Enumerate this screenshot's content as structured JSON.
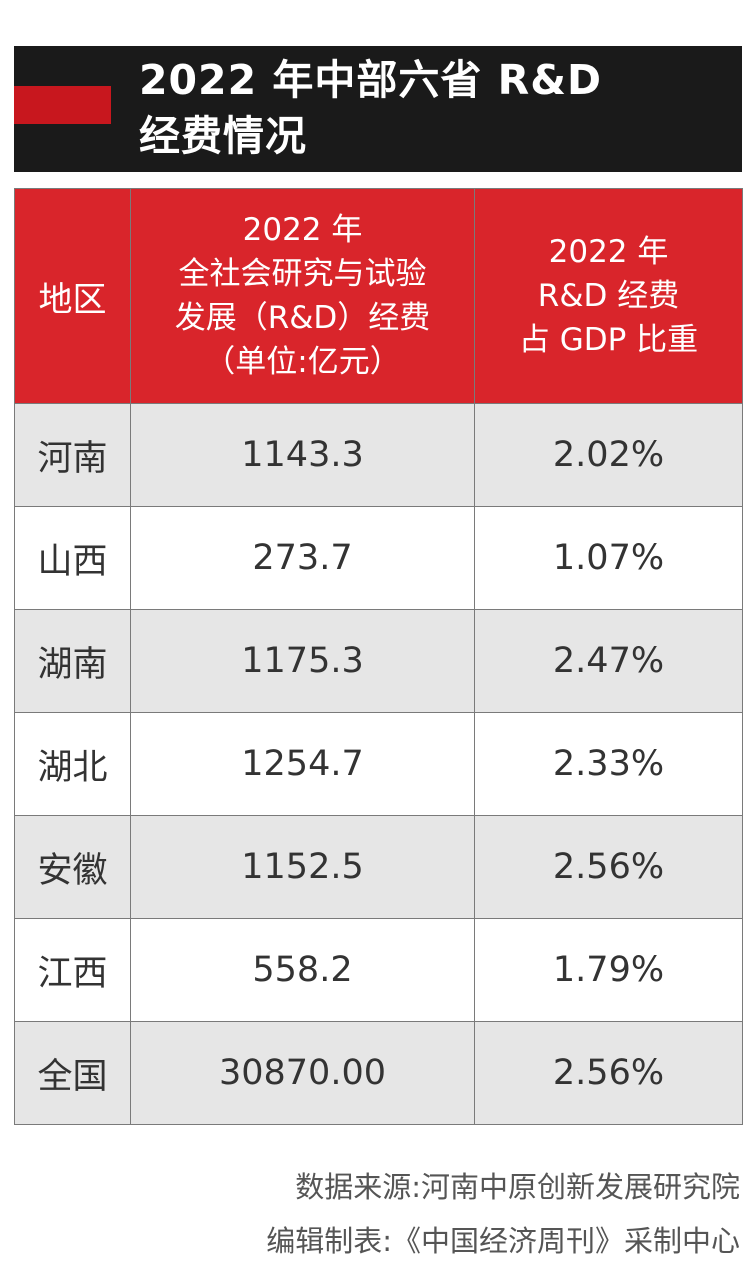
{
  "title": {
    "line1": "2022 年中部六省 R&D",
    "line2": "经费情况"
  },
  "colors": {
    "title_bg": "#1a1a1a",
    "accent_red": "#c8171e",
    "header_red": "#d9252b",
    "row_shade": "#e6e6e6"
  },
  "chart_data": {
    "type": "table",
    "title": "2022 年中部六省 R&D 经费情况",
    "columns": [
      {
        "lines": [
          "地区"
        ]
      },
      {
        "lines": [
          "2022 年",
          "全社会研究与试验",
          "发展（R&D）经费",
          "（单位:亿元）"
        ]
      },
      {
        "lines": [
          "2022 年",
          "R&D 经费",
          "占 GDP 比重"
        ]
      }
    ],
    "rows": [
      [
        "河南",
        "1143.3",
        "2.02%"
      ],
      [
        "山西",
        "273.7",
        "1.07%"
      ],
      [
        "湖南",
        "1175.3",
        "2.47%"
      ],
      [
        "湖北",
        "1254.7",
        "2.33%"
      ],
      [
        "安徽",
        "1152.5",
        "2.56%"
      ],
      [
        "江西",
        "558.2",
        "1.79%"
      ],
      [
        "全国",
        "30870.00",
        "2.56%"
      ]
    ]
  },
  "footer": {
    "source": "数据来源:河南中原创新发展研究院",
    "editor": "编辑制表:《中国经济周刊》采制中心"
  }
}
